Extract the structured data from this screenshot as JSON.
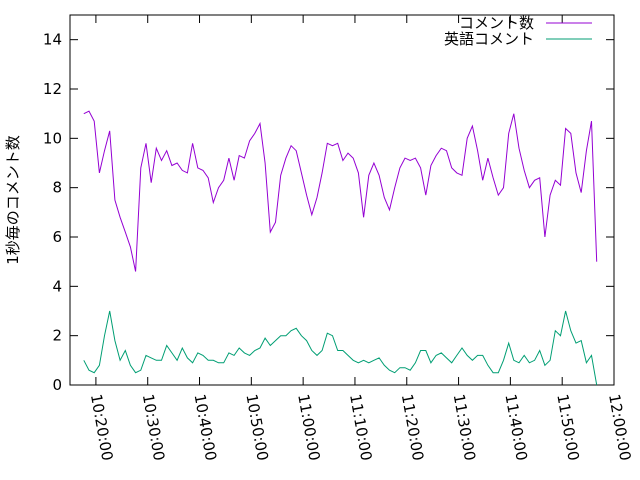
{
  "chart_data": {
    "type": "line",
    "title": "",
    "xlabel": "",
    "ylabel": "1秒毎のコメント数",
    "ylim": [
      0,
      15
    ],
    "yticks": [
      0,
      2,
      4,
      6,
      8,
      10,
      12,
      14
    ],
    "xlim": [
      "10:15:00",
      "12:00:00"
    ],
    "xticks": [
      "10:20:00",
      "10:30:00",
      "10:40:00",
      "10:50:00",
      "11:00:00",
      "11:10:00",
      "11:20:00",
      "11:30:00",
      "11:40:00",
      "11:50:00",
      "12:00:00"
    ],
    "grid": false,
    "legend": "top-right",
    "series": [
      {
        "name": "コメント数",
        "color": "#9400d3",
        "points": [
          [
            "10:17:40",
            11.0
          ],
          [
            "10:18:40",
            11.1
          ],
          [
            "10:19:40",
            10.7
          ],
          [
            "10:20:40",
            8.6
          ],
          [
            "10:21:40",
            9.5
          ],
          [
            "10:22:40",
            10.3
          ],
          [
            "10:23:40",
            7.5
          ],
          [
            "10:24:40",
            6.8
          ],
          [
            "10:25:40",
            6.2
          ],
          [
            "10:26:40",
            5.6
          ],
          [
            "10:27:40",
            4.6
          ],
          [
            "10:28:40",
            8.8
          ],
          [
            "10:29:40",
            9.8
          ],
          [
            "10:30:40",
            8.2
          ],
          [
            "10:31:40",
            9.6
          ],
          [
            "10:32:40",
            9.1
          ],
          [
            "10:33:40",
            9.5
          ],
          [
            "10:34:40",
            8.9
          ],
          [
            "10:35:40",
            9.0
          ],
          [
            "10:36:40",
            8.7
          ],
          [
            "10:37:40",
            8.6
          ],
          [
            "10:38:40",
            9.8
          ],
          [
            "10:39:40",
            8.8
          ],
          [
            "10:40:40",
            8.7
          ],
          [
            "10:41:40",
            8.4
          ],
          [
            "10:42:40",
            7.4
          ],
          [
            "10:43:40",
            8.0
          ],
          [
            "10:44:40",
            8.3
          ],
          [
            "10:45:40",
            9.2
          ],
          [
            "10:46:40",
            8.3
          ],
          [
            "10:47:40",
            9.3
          ],
          [
            "10:48:40",
            9.2
          ],
          [
            "10:49:40",
            9.9
          ],
          [
            "10:50:40",
            10.2
          ],
          [
            "10:51:40",
            10.6
          ],
          [
            "10:52:40",
            9.0
          ],
          [
            "10:53:40",
            6.2
          ],
          [
            "10:54:40",
            6.6
          ],
          [
            "10:55:40",
            8.5
          ],
          [
            "10:56:40",
            9.2
          ],
          [
            "10:57:40",
            9.7
          ],
          [
            "10:58:40",
            9.5
          ],
          [
            "10:59:40",
            8.6
          ],
          [
            "11:00:40",
            7.7
          ],
          [
            "11:01:40",
            6.9
          ],
          [
            "11:02:40",
            7.6
          ],
          [
            "11:03:40",
            8.6
          ],
          [
            "11:04:40",
            9.8
          ],
          [
            "11:05:40",
            9.7
          ],
          [
            "11:06:40",
            9.8
          ],
          [
            "11:07:40",
            9.1
          ],
          [
            "11:08:40",
            9.4
          ],
          [
            "11:09:40",
            9.2
          ],
          [
            "11:10:40",
            8.6
          ],
          [
            "11:11:40",
            6.8
          ],
          [
            "11:12:40",
            8.5
          ],
          [
            "11:13:40",
            9.0
          ],
          [
            "11:14:40",
            8.5
          ],
          [
            "11:15:40",
            7.6
          ],
          [
            "11:16:40",
            7.1
          ],
          [
            "11:17:40",
            8.0
          ],
          [
            "11:18:40",
            8.8
          ],
          [
            "11:19:40",
            9.2
          ],
          [
            "11:20:40",
            9.1
          ],
          [
            "11:21:40",
            9.2
          ],
          [
            "11:22:40",
            8.8
          ],
          [
            "11:23:40",
            7.7
          ],
          [
            "11:24:40",
            8.9
          ],
          [
            "11:25:40",
            9.3
          ],
          [
            "11:26:40",
            9.6
          ],
          [
            "11:27:40",
            9.5
          ],
          [
            "11:28:40",
            8.8
          ],
          [
            "11:29:40",
            8.6
          ],
          [
            "11:30:40",
            8.5
          ],
          [
            "11:31:40",
            10.0
          ],
          [
            "11:32:40",
            10.5
          ],
          [
            "11:33:40",
            9.5
          ],
          [
            "11:34:40",
            8.3
          ],
          [
            "11:35:40",
            9.2
          ],
          [
            "11:36:40",
            8.4
          ],
          [
            "11:37:40",
            7.7
          ],
          [
            "11:38:40",
            8.0
          ],
          [
            "11:39:40",
            10.2
          ],
          [
            "11:40:40",
            11.0
          ],
          [
            "11:41:40",
            9.6
          ],
          [
            "11:42:40",
            8.7
          ],
          [
            "11:43:40",
            8.0
          ],
          [
            "11:44:40",
            8.3
          ],
          [
            "11:45:40",
            8.4
          ],
          [
            "11:46:40",
            6.0
          ],
          [
            "11:47:40",
            7.7
          ],
          [
            "11:48:40",
            8.3
          ],
          [
            "11:49:40",
            8.1
          ],
          [
            "11:50:40",
            10.4
          ],
          [
            "11:51:40",
            10.2
          ],
          [
            "11:52:40",
            8.6
          ],
          [
            "11:53:40",
            7.8
          ],
          [
            "11:54:40",
            9.5
          ],
          [
            "11:55:40",
            10.7
          ],
          [
            "11:56:40",
            5.0
          ]
        ]
      },
      {
        "name": "英語コメント",
        "color": "#009e73",
        "points": [
          [
            "10:17:40",
            1.0
          ],
          [
            "10:18:40",
            0.6
          ],
          [
            "10:19:40",
            0.5
          ],
          [
            "10:20:40",
            0.8
          ],
          [
            "10:21:40",
            2.0
          ],
          [
            "10:22:40",
            3.0
          ],
          [
            "10:23:40",
            1.8
          ],
          [
            "10:24:40",
            1.0
          ],
          [
            "10:25:40",
            1.4
          ],
          [
            "10:26:40",
            0.8
          ],
          [
            "10:27:40",
            0.5
          ],
          [
            "10:28:40",
            0.6
          ],
          [
            "10:29:40",
            1.2
          ],
          [
            "10:30:40",
            1.1
          ],
          [
            "10:31:40",
            1.0
          ],
          [
            "10:32:40",
            1.0
          ],
          [
            "10:33:40",
            1.6
          ],
          [
            "10:34:40",
            1.3
          ],
          [
            "10:35:40",
            1.0
          ],
          [
            "10:36:40",
            1.5
          ],
          [
            "10:37:40",
            1.1
          ],
          [
            "10:38:40",
            0.9
          ],
          [
            "10:39:40",
            1.3
          ],
          [
            "10:40:40",
            1.2
          ],
          [
            "10:41:40",
            1.0
          ],
          [
            "10:42:40",
            1.0
          ],
          [
            "10:43:40",
            0.9
          ],
          [
            "10:44:40",
            0.9
          ],
          [
            "10:45:40",
            1.3
          ],
          [
            "10:46:40",
            1.2
          ],
          [
            "10:47:40",
            1.5
          ],
          [
            "10:48:40",
            1.3
          ],
          [
            "10:49:40",
            1.2
          ],
          [
            "10:50:40",
            1.4
          ],
          [
            "10:51:40",
            1.5
          ],
          [
            "10:52:40",
            1.9
          ],
          [
            "10:53:40",
            1.6
          ],
          [
            "10:54:40",
            1.8
          ],
          [
            "10:55:40",
            2.0
          ],
          [
            "10:56:40",
            2.0
          ],
          [
            "10:57:40",
            2.2
          ],
          [
            "10:58:40",
            2.3
          ],
          [
            "10:59:40",
            2.0
          ],
          [
            "11:00:40",
            1.8
          ],
          [
            "11:01:40",
            1.4
          ],
          [
            "11:02:40",
            1.2
          ],
          [
            "11:03:40",
            1.4
          ],
          [
            "11:04:40",
            2.1
          ],
          [
            "11:05:40",
            2.0
          ],
          [
            "11:06:40",
            1.4
          ],
          [
            "11:07:40",
            1.4
          ],
          [
            "11:08:40",
            1.2
          ],
          [
            "11:09:40",
            1.0
          ],
          [
            "11:10:40",
            0.9
          ],
          [
            "11:11:40",
            1.0
          ],
          [
            "11:12:40",
            0.9
          ],
          [
            "11:13:40",
            1.0
          ],
          [
            "11:14:40",
            1.1
          ],
          [
            "11:15:40",
            0.8
          ],
          [
            "11:16:40",
            0.6
          ],
          [
            "11:17:40",
            0.5
          ],
          [
            "11:18:40",
            0.7
          ],
          [
            "11:19:40",
            0.7
          ],
          [
            "11:20:40",
            0.6
          ],
          [
            "11:21:40",
            0.9
          ],
          [
            "11:22:40",
            1.4
          ],
          [
            "11:23:40",
            1.4
          ],
          [
            "11:24:40",
            0.9
          ],
          [
            "11:25:40",
            1.2
          ],
          [
            "11:26:40",
            1.3
          ],
          [
            "11:27:40",
            1.1
          ],
          [
            "11:28:40",
            0.9
          ],
          [
            "11:29:40",
            1.2
          ],
          [
            "11:30:40",
            1.5
          ],
          [
            "11:31:40",
            1.2
          ],
          [
            "11:32:40",
            1.0
          ],
          [
            "11:33:40",
            1.2
          ],
          [
            "11:34:40",
            1.2
          ],
          [
            "11:35:40",
            0.8
          ],
          [
            "11:36:40",
            0.5
          ],
          [
            "11:37:40",
            0.5
          ],
          [
            "11:38:40",
            1.0
          ],
          [
            "11:39:40",
            1.7
          ],
          [
            "11:40:40",
            1.0
          ],
          [
            "11:41:40",
            0.9
          ],
          [
            "11:42:40",
            1.2
          ],
          [
            "11:43:40",
            0.9
          ],
          [
            "11:44:40",
            1.0
          ],
          [
            "11:45:40",
            1.4
          ],
          [
            "11:46:40",
            0.8
          ],
          [
            "11:47:40",
            1.0
          ],
          [
            "11:48:40",
            2.2
          ],
          [
            "11:49:40",
            2.0
          ],
          [
            "11:50:40",
            3.0
          ],
          [
            "11:51:40",
            2.2
          ],
          [
            "11:52:40",
            1.7
          ],
          [
            "11:53:40",
            1.8
          ],
          [
            "11:54:40",
            0.9
          ],
          [
            "11:55:40",
            1.2
          ],
          [
            "11:56:40",
            0.0
          ]
        ]
      }
    ]
  }
}
